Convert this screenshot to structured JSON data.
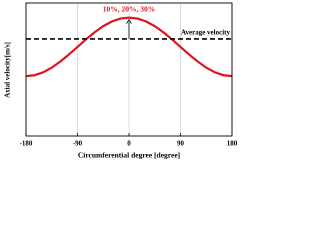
{
  "chart_data": {
    "type": "line",
    "x_label": "Circumferential degree [degree]",
    "y_label": "Axial velocity[m/s]",
    "x": [
      -180,
      -165,
      -150,
      -135,
      -120,
      -105,
      -90,
      -75,
      -60,
      -45,
      -30,
      -15,
      0,
      15,
      30,
      45,
      60,
      75,
      90,
      105,
      120,
      135,
      150,
      165,
      180
    ],
    "series": [
      {
        "color": "#e0141e",
        "values": [
          4.5,
          4.57,
          4.79,
          5.14,
          5.6,
          6.13,
          6.7,
          7.27,
          7.8,
          8.26,
          8.61,
          8.83,
          8.9,
          8.83,
          8.61,
          8.26,
          7.8,
          7.27,
          6.7,
          6.13,
          5.6,
          5.14,
          4.79,
          4.57,
          4.5
        ]
      }
    ],
    "hlines": [
      {
        "value": 7.3,
        "label": "Average velocity",
        "color": "#000000"
      }
    ],
    "annotation": {
      "text": "10%, 20%, 30%",
      "x": 0,
      "color": "#e0141e"
    },
    "xlim": [
      -180,
      180
    ],
    "xticks": [
      -180,
      -90,
      0,
      90,
      180
    ],
    "ylim": [
      0,
      10
    ],
    "grid": true
  }
}
